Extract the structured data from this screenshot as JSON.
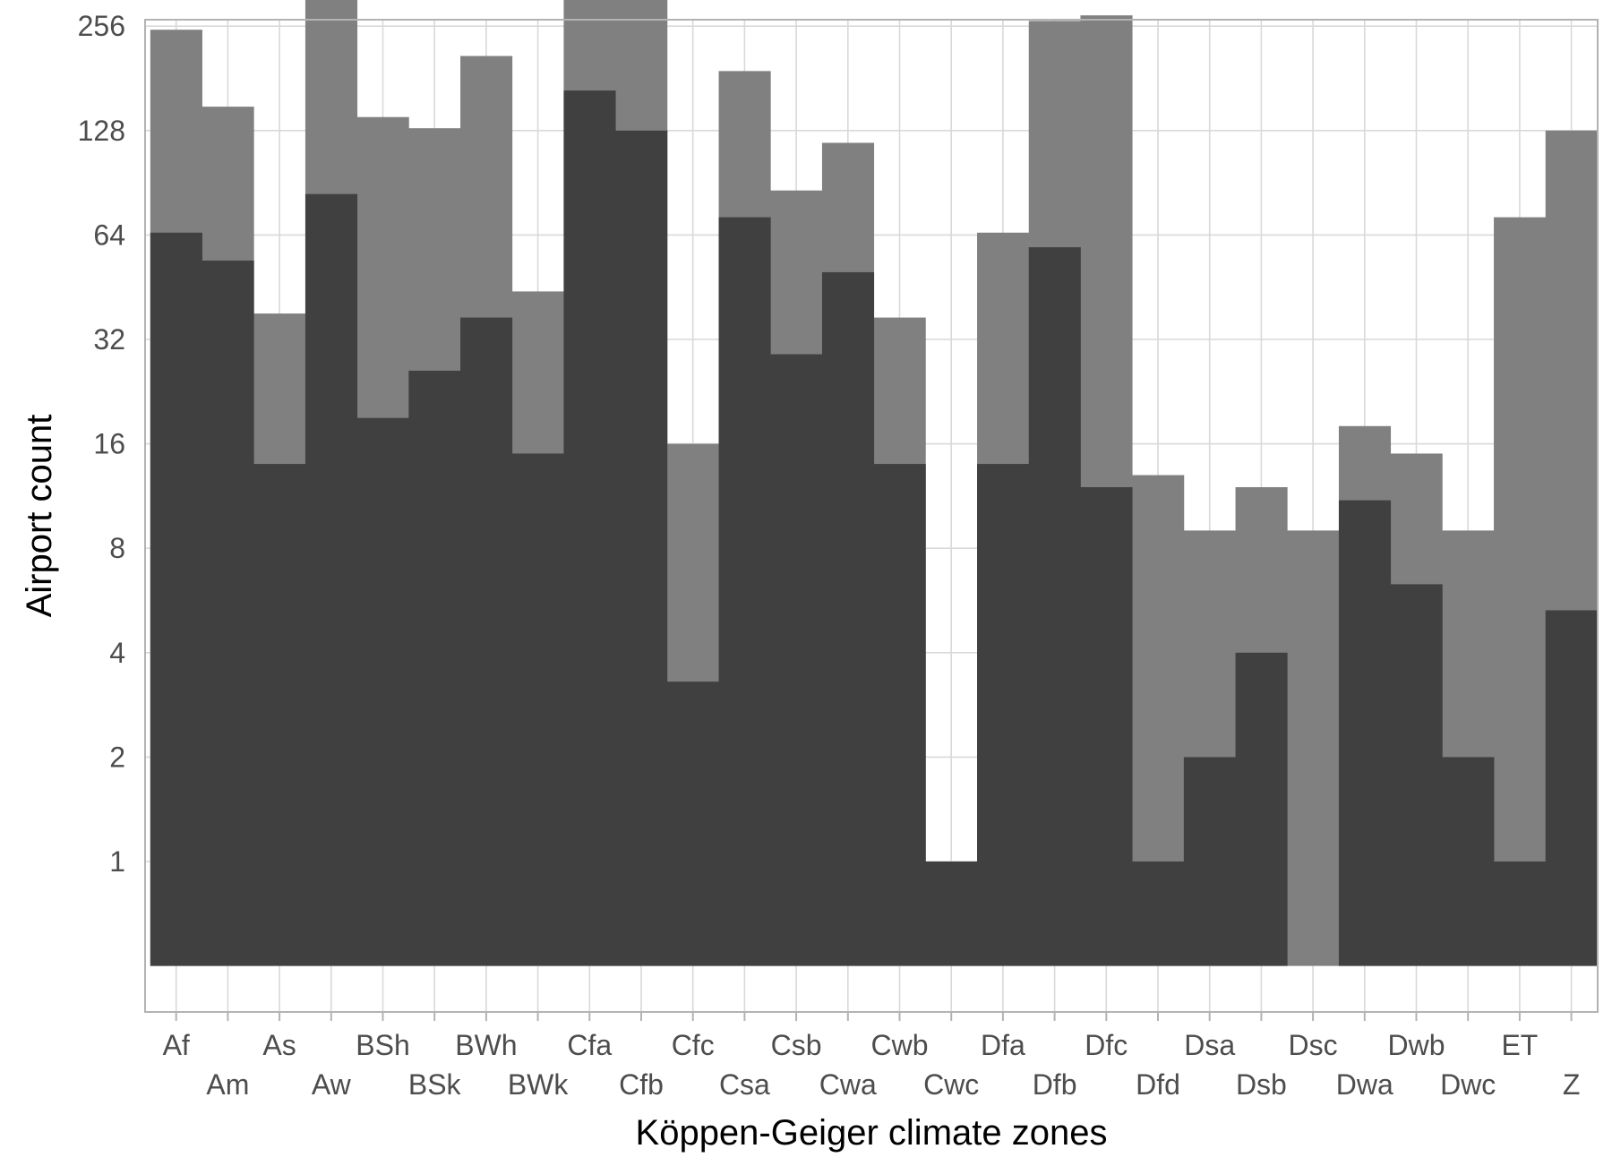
{
  "chart_data": {
    "type": "bar",
    "xlabel": "Köppen-Geiger climate zones",
    "ylabel": "Airport count",
    "y_scale": "log2",
    "y_ticks": [
      1,
      2,
      4,
      8,
      16,
      32,
      64,
      128,
      256
    ],
    "y_tick_labels": [
      "1",
      "2",
      "4",
      "8",
      "16",
      "32",
      "64",
      "128",
      "256"
    ],
    "ylim": [
      0.5,
      580
    ],
    "grid": true,
    "categories": [
      "Af",
      "Am",
      "As",
      "Aw",
      "BSh",
      "BSk",
      "BWh",
      "BWk",
      "Cfa",
      "Cfb",
      "Cfc",
      "Csa",
      "Csb",
      "Cwa",
      "Cwb",
      "Cwc",
      "Dfa",
      "Dfb",
      "Dfc",
      "Dfd",
      "Dsa",
      "Dsb",
      "Dsc",
      "Dwa",
      "Dwb",
      "Dwc",
      "ET",
      "Z"
    ],
    "series": [
      {
        "color": "#808080",
        "values": [
          250,
          150,
          38,
          330,
          140,
          130,
          210,
          44,
          360,
          345,
          16,
          190,
          86,
          118,
          37,
          1,
          65,
          265,
          275,
          13,
          9,
          12,
          9,
          18,
          15,
          9,
          72,
          128
        ]
      },
      {
        "color": "#404040",
        "values": [
          65,
          54,
          14,
          84,
          19,
          26,
          37,
          15,
          167,
          128,
          3.3,
          72,
          29,
          50,
          14,
          1,
          14,
          59,
          12,
          1,
          2,
          4,
          0,
          11,
          6.3,
          2,
          1,
          5.3
        ]
      }
    ]
  }
}
